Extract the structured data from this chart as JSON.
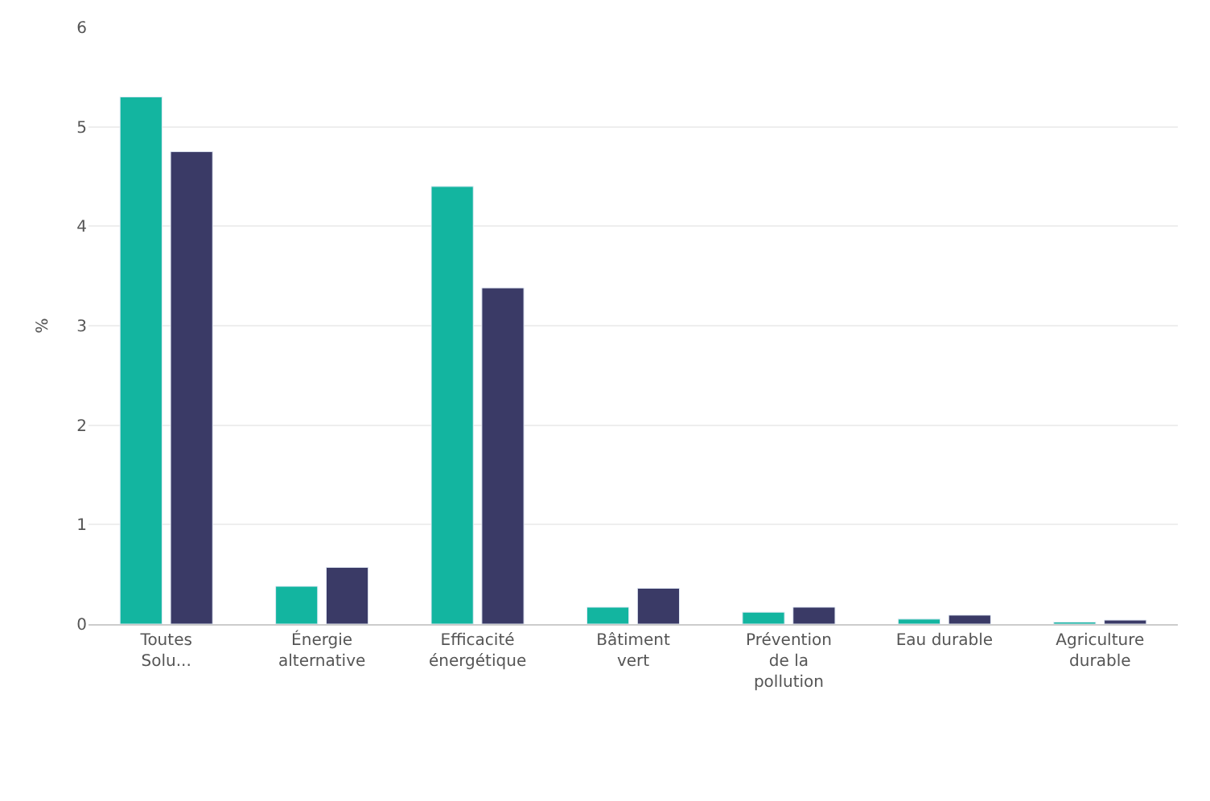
{
  "chart_data": {
    "type": "bar",
    "ylabel": "%",
    "categories": [
      "Toutes Solu...",
      "Énergie alternative",
      "Efficacité énergétique",
      "Bâtiment vert",
      "Prévention de la pollution",
      "Eau durable",
      "Agriculture durable"
    ],
    "series": [
      {
        "color": "#13b5a0",
        "values": [
          5.3,
          0.38,
          4.4,
          0.17,
          0.12,
          0.05,
          0.02
        ]
      },
      {
        "color": "#3a3a66",
        "values": [
          4.75,
          0.57,
          3.38,
          0.36,
          0.17,
          0.09,
          0.04
        ]
      }
    ],
    "ylim": [
      0,
      6
    ],
    "yticks": [
      0,
      1,
      2,
      3,
      4,
      5,
      6
    ],
    "grid": "y"
  }
}
